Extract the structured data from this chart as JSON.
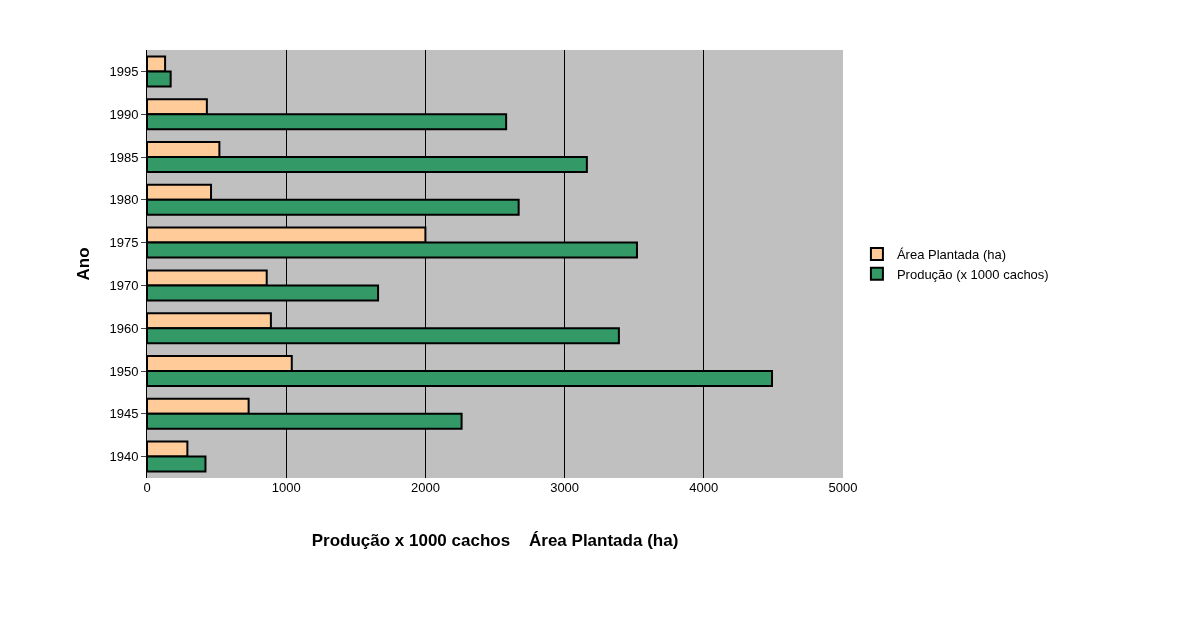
{
  "chart_data": {
    "type": "bar",
    "orientation": "horizontal",
    "xlabel": "Produção x 1000 cachos    Área Plantada (ha)",
    "ylabel": "Ano",
    "categories": [
      "1995",
      "1990",
      "1985",
      "1980",
      "1975",
      "1970",
      "1960",
      "1950",
      "1945",
      "1940"
    ],
    "series": [
      {
        "name": "Área Plantada (ha)",
        "color": "#ffcc99",
        "values": [
          130,
          430,
          520,
          460,
          2000,
          860,
          890,
          1040,
          730,
          290
        ]
      },
      {
        "name": "Produção (x 1000 cachos)",
        "color": "#339966",
        "values": [
          170,
          2580,
          3160,
          2670,
          3520,
          1660,
          3390,
          4490,
          2260,
          420
        ]
      }
    ],
    "xlim": [
      0,
      5000
    ],
    "xticks": [
      0,
      1000,
      2000,
      3000,
      4000,
      5000
    ],
    "grid": "x",
    "legend": "right"
  }
}
